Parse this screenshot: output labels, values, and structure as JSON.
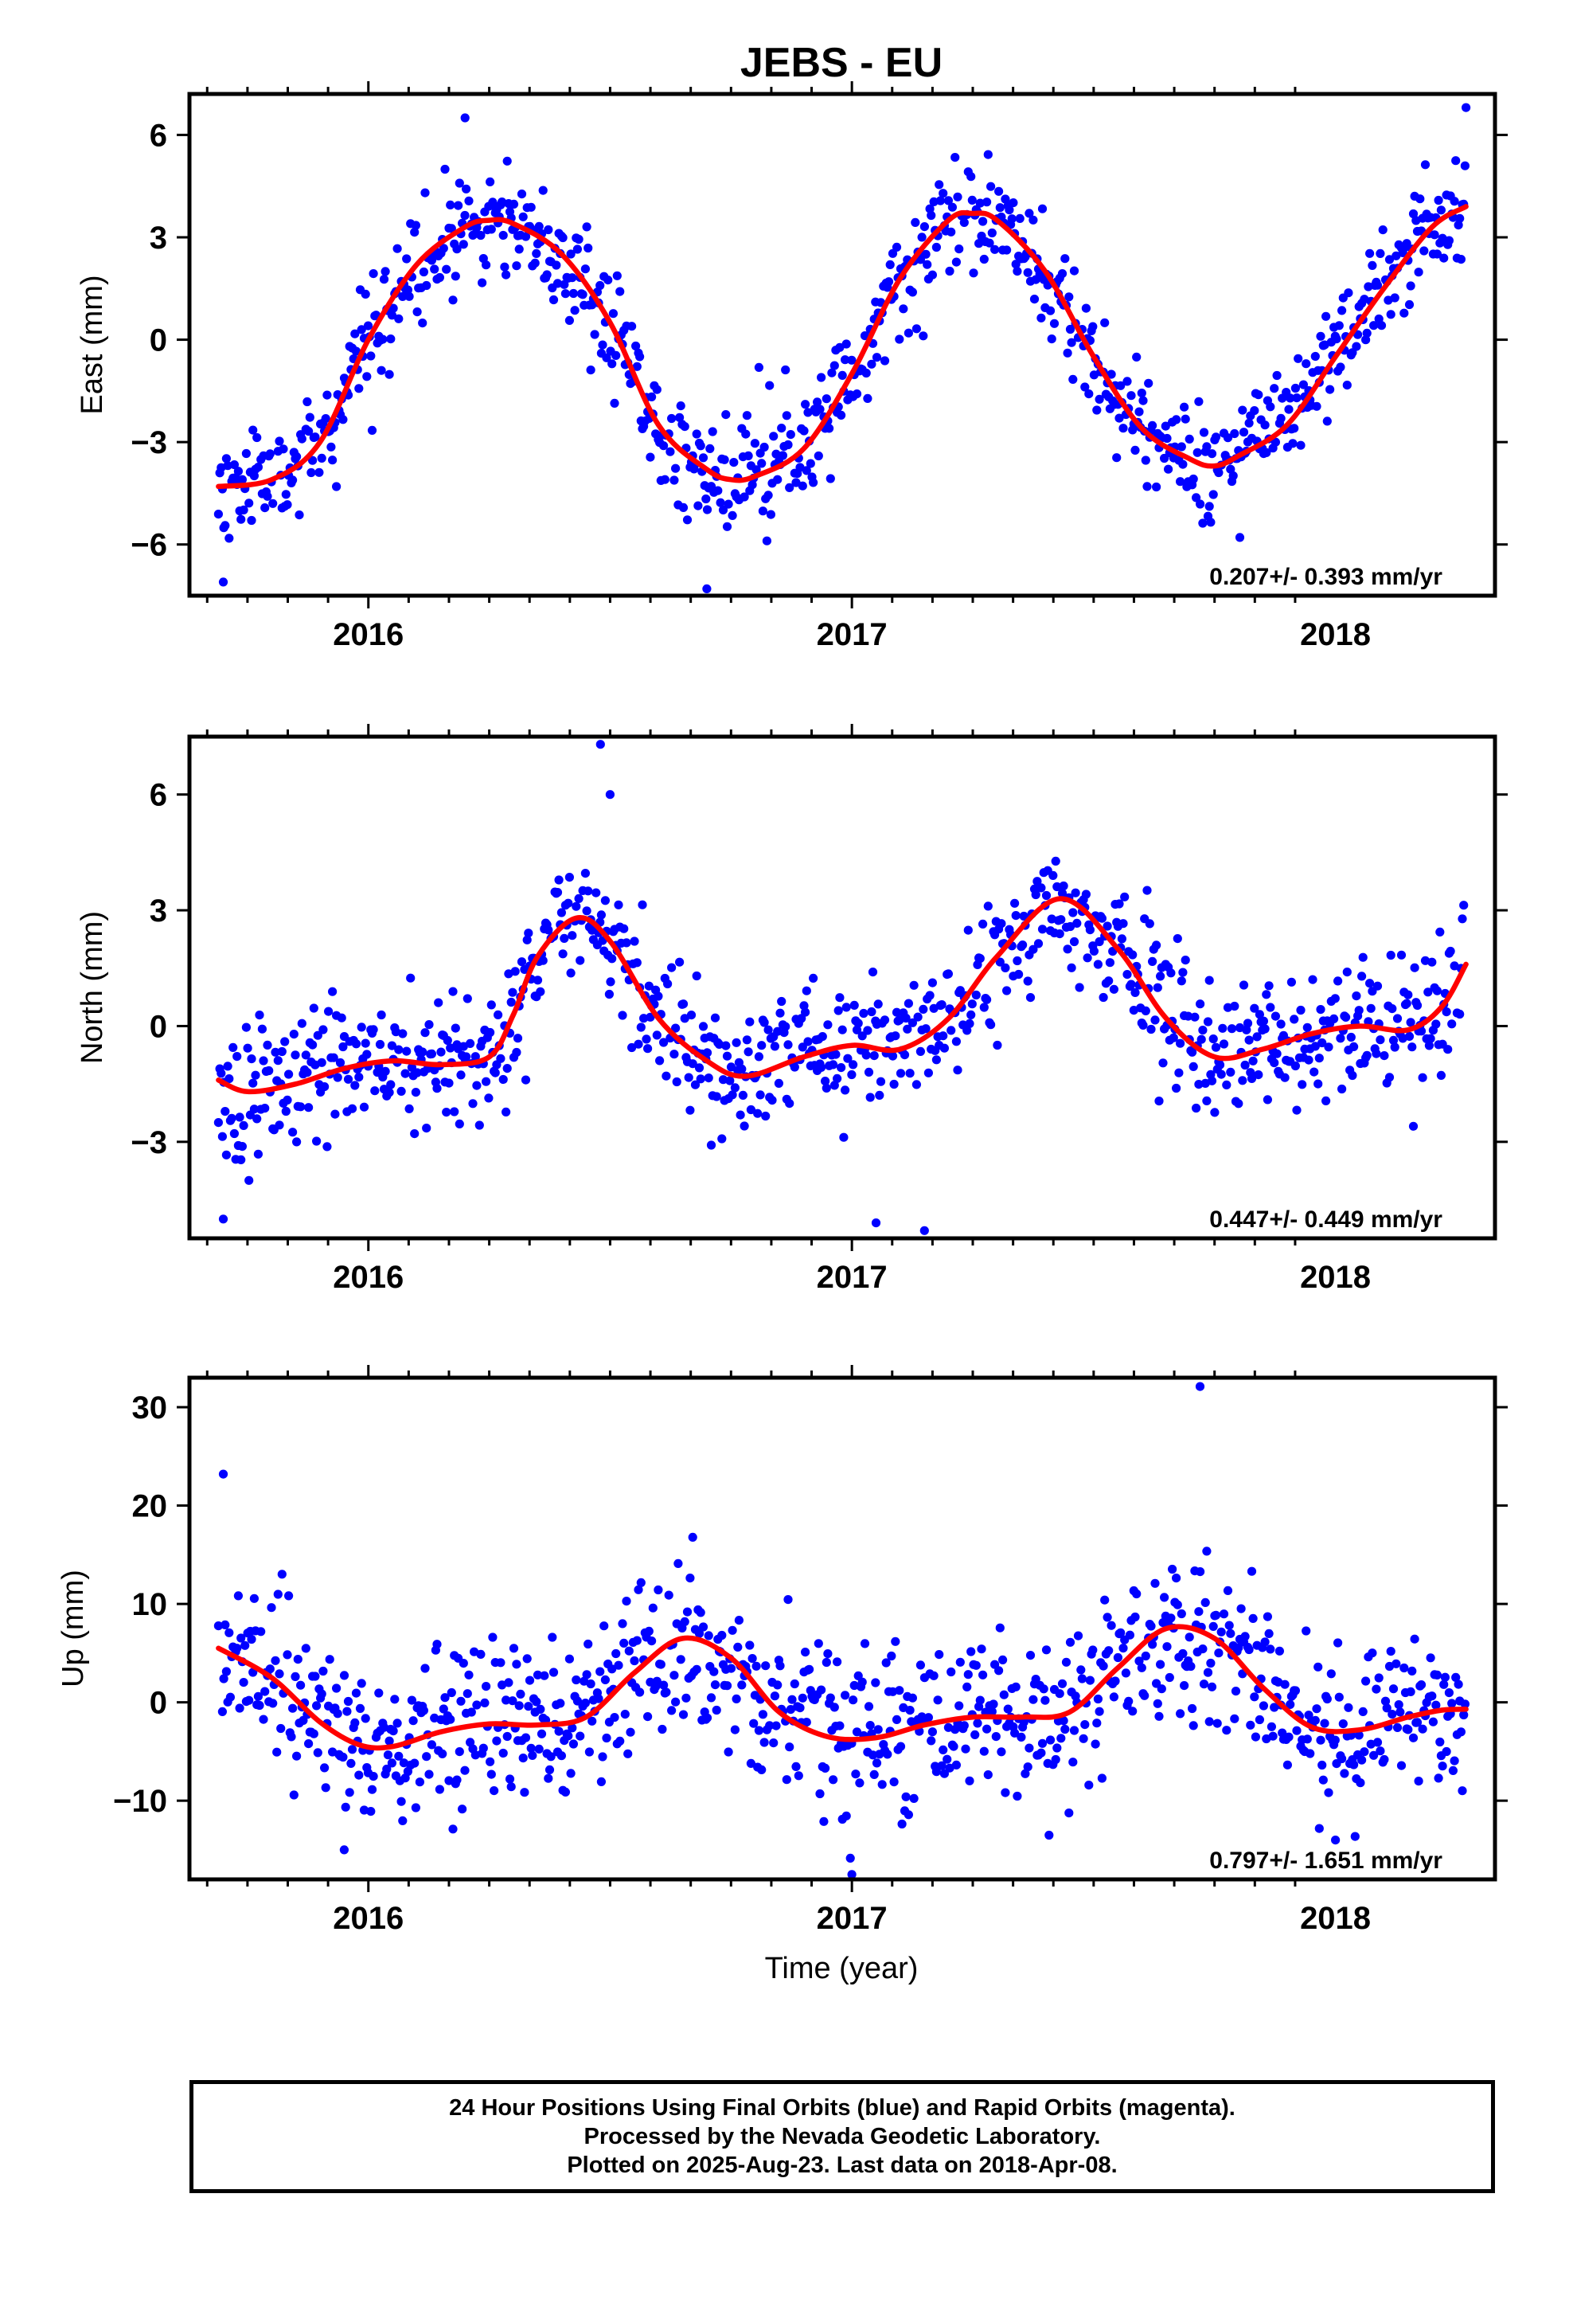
{
  "title": "JEBS - EU",
  "x_axis_label": "Time (year)",
  "caption": {
    "line1": "24 Hour Positions Using Final Orbits (blue) and Rapid Orbits (magenta).",
    "line2": "Processed by the Nevada Geodetic Laboratory.",
    "line3": "Plotted on 2025-Aug-23. Last data on 2018-Apr-08."
  },
  "colors": {
    "points": "#0000ff",
    "fit": "#ff0000",
    "frame": "#000000"
  },
  "chart_data": [
    {
      "type": "scatter",
      "ylabel": "East (mm)",
      "rate_label": "0.207+/- 0.393 mm/yr",
      "xlim": [
        2015.63,
        2018.33
      ],
      "ylim": [
        -7.5,
        7.2
      ],
      "xticks": [
        2016,
        2017,
        2018
      ],
      "yticks": [
        -6,
        -3,
        0,
        3,
        6
      ],
      "ytick_labels": [
        "−6",
        "−3",
        "0",
        "3",
        "6"
      ],
      "series": [
        {
          "kind": "points",
          "color": "#0000ff",
          "generator": {
            "t_start": 2015.69,
            "t_end": 2018.27,
            "step": 0.0027397,
            "gaps": [],
            "noise_sd": 0.85,
            "seed": 11
          },
          "extremes": [
            [
              2016.2,
              6.5
            ],
            [
              2016.7,
              -7.3
            ],
            [
              2018.27,
              6.8
            ],
            [
              2015.7,
              -7.1
            ]
          ]
        },
        {
          "kind": "fit",
          "color": "#ff0000",
          "knots": [
            [
              2015.69,
              -4.3
            ],
            [
              2015.8,
              -4.1
            ],
            [
              2015.9,
              -3.0
            ],
            [
              2016.0,
              0.0
            ],
            [
              2016.1,
              2.2
            ],
            [
              2016.2,
              3.3
            ],
            [
              2016.25,
              3.5
            ],
            [
              2016.3,
              3.4
            ],
            [
              2016.4,
              2.5
            ],
            [
              2016.5,
              0.5
            ],
            [
              2016.6,
              -2.5
            ],
            [
              2016.7,
              -3.8
            ],
            [
              2016.75,
              -4.1
            ],
            [
              2016.8,
              -4.0
            ],
            [
              2016.9,
              -3.2
            ],
            [
              2017.0,
              -1.0
            ],
            [
              2017.1,
              1.8
            ],
            [
              2017.2,
              3.5
            ],
            [
              2017.25,
              3.7
            ],
            [
              2017.3,
              3.5
            ],
            [
              2017.4,
              2.0
            ],
            [
              2017.5,
              -0.5
            ],
            [
              2017.6,
              -2.6
            ],
            [
              2017.7,
              -3.5
            ],
            [
              2017.75,
              -3.7
            ],
            [
              2017.8,
              -3.4
            ],
            [
              2017.9,
              -2.5
            ],
            [
              2018.0,
              -0.5
            ],
            [
              2018.1,
              1.5
            ],
            [
              2018.2,
              3.3
            ],
            [
              2018.27,
              3.9
            ]
          ]
        }
      ]
    },
    {
      "type": "scatter",
      "ylabel": "North (mm)",
      "rate_label": "0.447+/- 0.449 mm/yr",
      "xlim": [
        2015.63,
        2018.33
      ],
      "ylim": [
        -5.5,
        7.5
      ],
      "xticks": [
        2016,
        2017,
        2018
      ],
      "yticks": [
        -3,
        0,
        3,
        6
      ],
      "ytick_labels": [
        "−3",
        "0",
        "3",
        "6"
      ],
      "series": [
        {
          "kind": "points",
          "color": "#0000ff",
          "generator": {
            "t_start": 2015.69,
            "t_end": 2018.27,
            "step": 0.0027397,
            "gaps": [],
            "noise_sd": 0.85,
            "seed": 23
          },
          "extremes": [
            [
              2016.48,
              7.3
            ],
            [
              2016.5,
              6.0
            ],
            [
              2017.05,
              -5.1
            ],
            [
              2017.15,
              -5.3
            ],
            [
              2015.7,
              -5.0
            ]
          ]
        },
        {
          "kind": "fit",
          "color": "#ff0000",
          "knots": [
            [
              2015.69,
              -1.4
            ],
            [
              2015.75,
              -1.7
            ],
            [
              2015.85,
              -1.5
            ],
            [
              2015.95,
              -1.1
            ],
            [
              2016.05,
              -0.9
            ],
            [
              2016.15,
              -1.0
            ],
            [
              2016.25,
              -0.8
            ],
            [
              2016.3,
              0.3
            ],
            [
              2016.35,
              1.8
            ],
            [
              2016.43,
              2.8
            ],
            [
              2016.5,
              2.2
            ],
            [
              2016.6,
              0.2
            ],
            [
              2016.7,
              -0.9
            ],
            [
              2016.78,
              -1.3
            ],
            [
              2016.9,
              -0.8
            ],
            [
              2017.0,
              -0.5
            ],
            [
              2017.1,
              -0.6
            ],
            [
              2017.2,
              0.2
            ],
            [
              2017.3,
              1.8
            ],
            [
              2017.43,
              3.3
            ],
            [
              2017.55,
              2.0
            ],
            [
              2017.65,
              0.2
            ],
            [
              2017.75,
              -0.8
            ],
            [
              2017.85,
              -0.6
            ],
            [
              2017.95,
              -0.2
            ],
            [
              2018.05,
              0.0
            ],
            [
              2018.15,
              -0.1
            ],
            [
              2018.22,
              0.5
            ],
            [
              2018.27,
              1.6
            ]
          ]
        }
      ]
    },
    {
      "type": "scatter",
      "ylabel": "Up (mm)",
      "rate_label": "0.797+/- 1.651 mm/yr",
      "xlim": [
        2015.63,
        2018.33
      ],
      "ylim": [
        -18,
        33
      ],
      "xticks": [
        2016,
        2017,
        2018
      ],
      "yticks": [
        -10,
        0,
        10,
        20,
        30
      ],
      "ytick_labels": [
        "−10",
        "0",
        "10",
        "20",
        "30"
      ],
      "series": [
        {
          "kind": "points",
          "color": "#0000ff",
          "generator": {
            "t_start": 2015.69,
            "t_end": 2018.27,
            "step": 0.0027397,
            "gaps": [],
            "noise_sd": 4.2,
            "seed": 37
          },
          "extremes": [
            [
              2015.7,
              23.2
            ],
            [
              2017.72,
              32.1
            ],
            [
              2017.0,
              -17.5
            ],
            [
              2015.95,
              -15.0
            ],
            [
              2018.0,
              -14.0
            ]
          ]
        },
        {
          "kind": "fit",
          "color": "#ff0000",
          "knots": [
            [
              2015.69,
              5.5
            ],
            [
              2015.8,
              2.5
            ],
            [
              2015.9,
              -2.0
            ],
            [
              2015.98,
              -4.3
            ],
            [
              2016.05,
              -4.5
            ],
            [
              2016.15,
              -3.0
            ],
            [
              2016.25,
              -2.2
            ],
            [
              2016.35,
              -2.3
            ],
            [
              2016.45,
              -1.5
            ],
            [
              2016.55,
              3.0
            ],
            [
              2016.65,
              6.5
            ],
            [
              2016.75,
              4.5
            ],
            [
              2016.85,
              -1.0
            ],
            [
              2016.95,
              -3.5
            ],
            [
              2017.05,
              -3.6
            ],
            [
              2017.15,
              -2.3
            ],
            [
              2017.25,
              -1.5
            ],
            [
              2017.35,
              -1.5
            ],
            [
              2017.45,
              -1.0
            ],
            [
              2017.55,
              3.5
            ],
            [
              2017.65,
              7.5
            ],
            [
              2017.75,
              6.5
            ],
            [
              2017.85,
              1.5
            ],
            [
              2017.95,
              -2.5
            ],
            [
              2018.05,
              -2.8
            ],
            [
              2018.15,
              -1.5
            ],
            [
              2018.22,
              -0.8
            ],
            [
              2018.27,
              -0.7
            ]
          ]
        }
      ]
    }
  ]
}
